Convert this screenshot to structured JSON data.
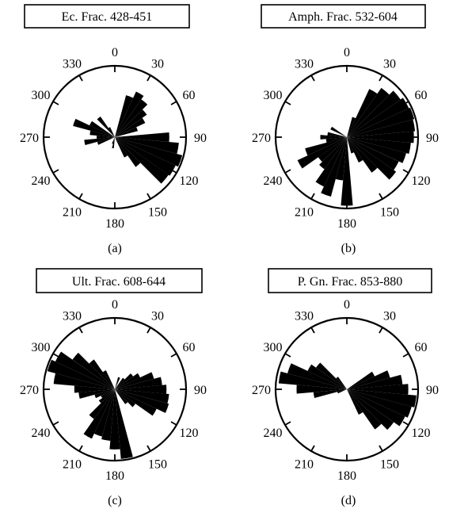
{
  "chart_data": [
    {
      "type": "rose",
      "title": "Ec. Frac. 428-451",
      "panel_label": "(a)",
      "angle_labels": [
        "0",
        "30",
        "60",
        "90",
        "120",
        "150",
        "180",
        "210",
        "240",
        "270",
        "300",
        "330"
      ],
      "bin_width_deg": 10,
      "max_radius": 1.0,
      "petals": [
        {
          "az": 20,
          "r": 0.62
        },
        {
          "az": 30,
          "r": 0.72
        },
        {
          "az": 40,
          "r": 0.66
        },
        {
          "az": 50,
          "r": 0.56
        },
        {
          "az": 60,
          "r": 0.48
        },
        {
          "az": 70,
          "r": 0.34
        },
        {
          "az": 90,
          "r": 0.78
        },
        {
          "az": 100,
          "r": 0.92
        },
        {
          "az": 110,
          "r": 1.0
        },
        {
          "az": 120,
          "r": 0.96
        },
        {
          "az": 130,
          "r": 0.94
        },
        {
          "az": 140,
          "r": 0.52
        },
        {
          "az": 150,
          "r": 0.32
        },
        {
          "az": 190,
          "r": 0.16
        },
        {
          "az": 200,
          "r": 0.1
        },
        {
          "az": 250,
          "r": 0.26
        },
        {
          "az": 260,
          "r": 0.44
        },
        {
          "az": 270,
          "r": 0.26
        },
        {
          "az": 280,
          "r": 0.36
        },
        {
          "az": 290,
          "r": 0.62
        },
        {
          "az": 300,
          "r": 0.4
        },
        {
          "az": 320,
          "r": 0.36
        },
        {
          "az": 330,
          "r": 0.16
        }
      ]
    },
    {
      "type": "rose",
      "title": "Amph. Frac. 532-604",
      "panel_label": "(b)",
      "angle_labels": [
        "0",
        "30",
        "60",
        "90",
        "120",
        "150",
        "180",
        "210",
        "240",
        "270",
        "300",
        "330"
      ],
      "bin_width_deg": 10,
      "max_radius": 1.0,
      "petals": [
        {
          "az": 20,
          "r": 0.3
        },
        {
          "az": 30,
          "r": 0.76
        },
        {
          "az": 40,
          "r": 0.86
        },
        {
          "az": 50,
          "r": 0.94
        },
        {
          "az": 60,
          "r": 0.98
        },
        {
          "az": 70,
          "r": 1.0
        },
        {
          "az": 80,
          "r": 0.98
        },
        {
          "az": 90,
          "r": 0.96
        },
        {
          "az": 100,
          "r": 0.92
        },
        {
          "az": 110,
          "r": 0.88
        },
        {
          "az": 120,
          "r": 0.82
        },
        {
          "az": 130,
          "r": 0.86
        },
        {
          "az": 140,
          "r": 0.62
        },
        {
          "az": 150,
          "r": 0.4
        },
        {
          "az": 160,
          "r": 0.24
        },
        {
          "az": 180,
          "r": 0.98
        },
        {
          "az": 190,
          "r": 0.62
        },
        {
          "az": 200,
          "r": 0.88
        },
        {
          "az": 210,
          "r": 0.78
        },
        {
          "az": 220,
          "r": 0.56
        },
        {
          "az": 230,
          "r": 0.5
        },
        {
          "az": 240,
          "r": 0.78
        },
        {
          "az": 250,
          "r": 0.62
        },
        {
          "az": 260,
          "r": 0.3
        },
        {
          "az": 270,
          "r": 0.38
        },
        {
          "az": 280,
          "r": 0.28
        },
        {
          "az": 300,
          "r": 0.26
        }
      ]
    },
    {
      "type": "rose",
      "title": "Ult. Frac. 608-644",
      "panel_label": "(c)",
      "angle_labels": [
        "0",
        "30",
        "60",
        "90",
        "120",
        "150",
        "180",
        "210",
        "240",
        "270",
        "300",
        "330"
      ],
      "bin_width_deg": 10,
      "max_radius": 1.0,
      "petals": [
        {
          "az": 20,
          "r": 0.18
        },
        {
          "az": 40,
          "r": 0.2
        },
        {
          "az": 50,
          "r": 0.32
        },
        {
          "az": 60,
          "r": 0.4
        },
        {
          "az": 70,
          "r": 0.58
        },
        {
          "az": 80,
          "r": 0.68
        },
        {
          "az": 90,
          "r": 0.74
        },
        {
          "az": 100,
          "r": 0.78
        },
        {
          "az": 110,
          "r": 0.8
        },
        {
          "az": 120,
          "r": 0.66
        },
        {
          "az": 130,
          "r": 0.36
        },
        {
          "az": 140,
          "r": 0.26
        },
        {
          "az": 170,
          "r": 1.0
        },
        {
          "az": 180,
          "r": 0.86
        },
        {
          "az": 190,
          "r": 0.74
        },
        {
          "az": 200,
          "r": 0.7
        },
        {
          "az": 210,
          "r": 0.78
        },
        {
          "az": 220,
          "r": 0.52
        },
        {
          "az": 230,
          "r": 0.28
        },
        {
          "az": 240,
          "r": 0.22
        },
        {
          "az": 250,
          "r": 0.3
        },
        {
          "az": 260,
          "r": 0.52
        },
        {
          "az": 270,
          "r": 0.58
        },
        {
          "az": 280,
          "r": 0.88
        },
        {
          "az": 290,
          "r": 1.0
        },
        {
          "az": 300,
          "r": 0.94
        },
        {
          "az": 310,
          "r": 0.74
        },
        {
          "az": 320,
          "r": 0.52
        },
        {
          "az": 330,
          "r": 0.3
        }
      ]
    },
    {
      "type": "rose",
      "title": "P. Gn. Frac. 853-880",
      "panel_label": "(d)",
      "angle_labels": [
        "0",
        "30",
        "60",
        "90",
        "120",
        "150",
        "180",
        "210",
        "240",
        "270",
        "300",
        "330"
      ],
      "bin_width_deg": 10,
      "max_radius": 1.0,
      "petals": [
        {
          "az": 60,
          "r": 0.44
        },
        {
          "az": 70,
          "r": 0.64
        },
        {
          "az": 80,
          "r": 0.8
        },
        {
          "az": 90,
          "r": 0.88
        },
        {
          "az": 100,
          "r": 1.0
        },
        {
          "az": 110,
          "r": 0.96
        },
        {
          "az": 120,
          "r": 0.92
        },
        {
          "az": 130,
          "r": 0.82
        },
        {
          "az": 140,
          "r": 0.7
        },
        {
          "az": 150,
          "r": 0.4
        },
        {
          "az": 250,
          "r": 0.14
        },
        {
          "az": 260,
          "r": 0.48
        },
        {
          "az": 270,
          "r": 0.72
        },
        {
          "az": 280,
          "r": 0.98
        },
        {
          "az": 290,
          "r": 0.88
        },
        {
          "az": 300,
          "r": 0.62
        },
        {
          "az": 310,
          "r": 0.54
        },
        {
          "az": 320,
          "r": 0.22
        }
      ]
    }
  ]
}
